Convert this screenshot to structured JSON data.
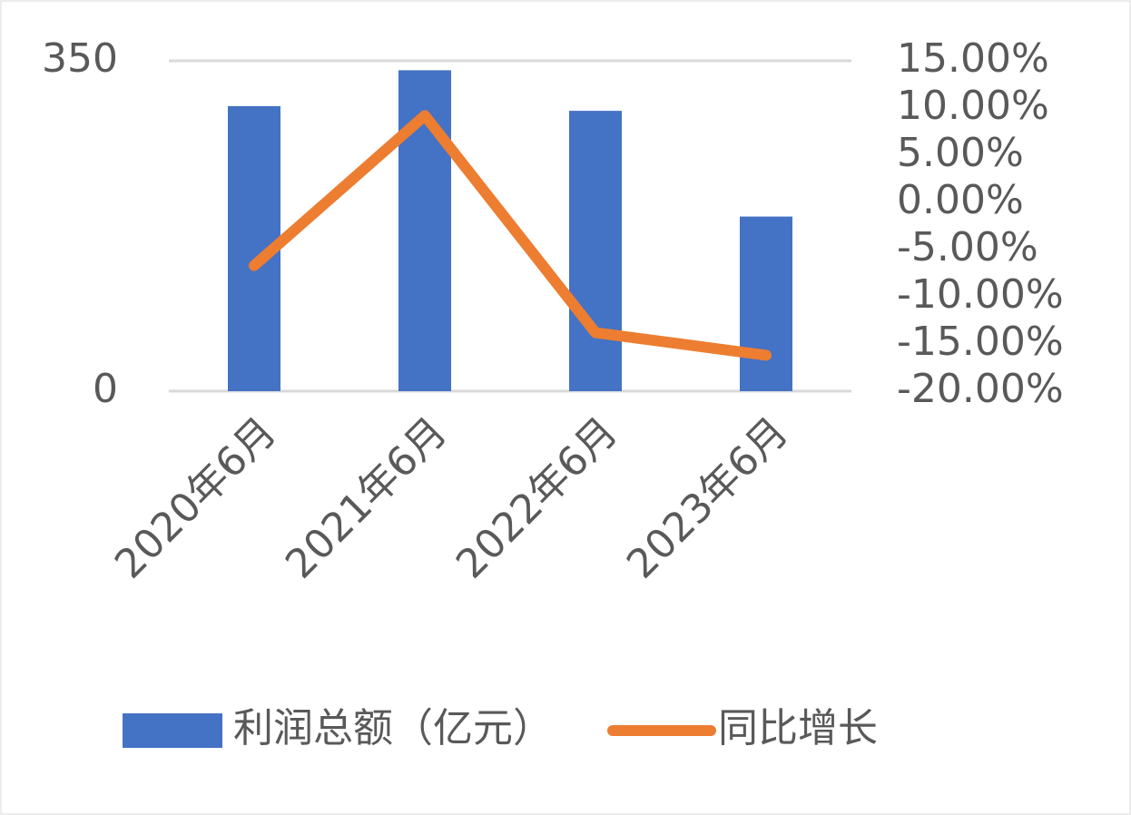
{
  "chart_data": {
    "type": "bar-line",
    "categories": [
      "2020年6月",
      "2021年6月",
      "2022年6月",
      "2023年6月"
    ],
    "series": [
      {
        "name": "利润总额（亿元）",
        "type": "bar",
        "color": "#4472c4",
        "values": [
          302,
          340,
          297,
          185
        ]
      },
      {
        "name": "同比增长",
        "type": "line",
        "axis": "y2",
        "color": "#ed7d31",
        "values": [
          -6.7,
          9.2,
          -13.8,
          -16.2
        ]
      }
    ],
    "ylim": [
      0,
      350
    ],
    "yticks": [
      0,
      350
    ],
    "y2lim": [
      -20,
      15
    ],
    "y2ticks": [
      {
        "value": 15,
        "label": "15.00%"
      },
      {
        "value": 10,
        "label": "10.00%"
      },
      {
        "value": 5,
        "label": "5.00%"
      },
      {
        "value": 0,
        "label": "0.00%"
      },
      {
        "value": -5,
        "label": "-5.00%"
      },
      {
        "value": -10,
        "label": "-10.00%"
      },
      {
        "value": -15,
        "label": "-15.00%"
      },
      {
        "value": -20,
        "label": "-20.00%"
      }
    ],
    "grid": true,
    "legend": "bottom"
  }
}
